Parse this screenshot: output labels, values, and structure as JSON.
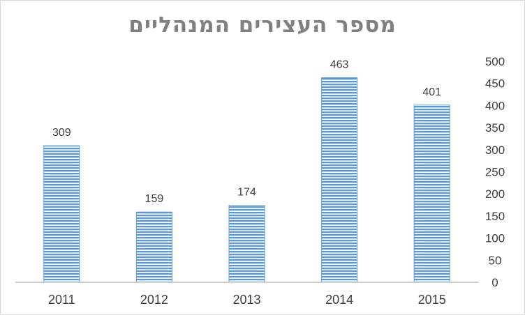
{
  "chart_data": {
    "type": "bar",
    "title": "מספר העצירים המנהליים",
    "categories": [
      "2011",
      "2012",
      "2013",
      "2014",
      "2015"
    ],
    "values": [
      309,
      159,
      174,
      463,
      401
    ],
    "ylim": [
      0,
      500
    ],
    "yticks": [
      0,
      50,
      100,
      150,
      200,
      250,
      300,
      350,
      400,
      450,
      500
    ],
    "y_axis_side": "right",
    "grid": false,
    "legend": "none",
    "bar_color": "#5b9bd5",
    "bar_fill_pattern": "horizontal-stripes"
  }
}
